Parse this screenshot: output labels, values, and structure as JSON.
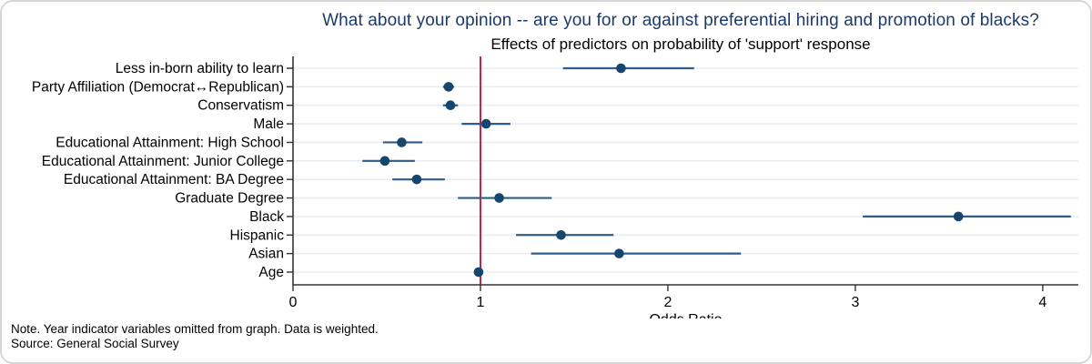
{
  "chart_data": {
    "type": "scatter",
    "subtype": "forest-plot-odds-ratios",
    "title": "What about your opinion -- are you for or against preferential hiring and promotion of blacks?",
    "subtitle": "Effects of predictors on probability of 'support' response",
    "xlabel": "Odds Ratio",
    "categories": [
      "Less in-born ability to learn",
      "Party Affiliation (Democrat↔Republican)",
      "Conservatism",
      "Male",
      "Educational Attainment: High School",
      "Educational Attainment: Junior College",
      "Educational Attainment: BA Degree",
      "Graduate Degree",
      "Black",
      "Hispanic",
      "Asian",
      "Age"
    ],
    "series": [
      {
        "name": "Odds Ratio (point estimate)",
        "values": [
          1.75,
          0.83,
          0.84,
          1.03,
          0.58,
          0.49,
          0.66,
          1.1,
          3.55,
          1.43,
          1.74,
          0.99
        ],
        "ci_low": [
          1.44,
          0.8,
          0.8,
          0.9,
          0.48,
          0.37,
          0.53,
          0.88,
          3.04,
          1.19,
          1.27,
          0.98
        ],
        "ci_high": [
          2.14,
          0.86,
          0.88,
          1.16,
          0.69,
          0.65,
          0.81,
          1.38,
          4.15,
          1.71,
          2.39,
          1.0
        ]
      }
    ],
    "x_ticks": [
      0,
      1,
      2,
      3,
      4
    ],
    "xlim": [
      0,
      4.19
    ],
    "ref_line_x": 1,
    "grid": true,
    "legend": "none",
    "colors": {
      "title": "#1b3a6b",
      "marker": "#16456e",
      "ci_line": "#2e5c86",
      "ref_line": "#c42143",
      "grid": "#e9edf2",
      "axis": "#333333",
      "text": "#000000"
    }
  },
  "notes": {
    "line1": "Note. Year indicator variables omitted from graph. Data is weighted.",
    "line2": "Source: General Social Survey"
  }
}
